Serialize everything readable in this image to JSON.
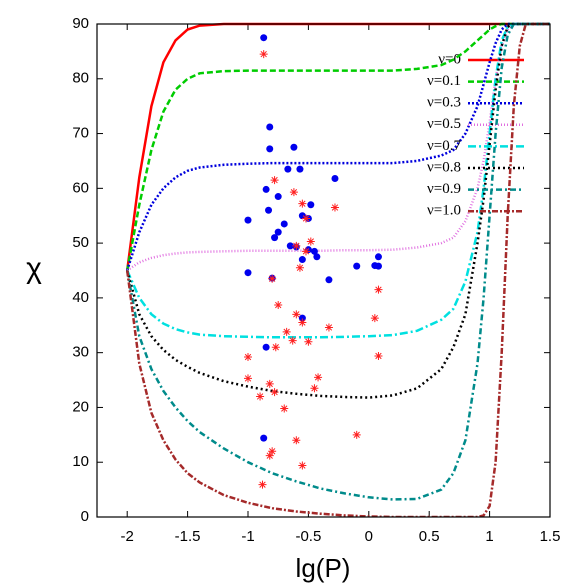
{
  "chart_data": {
    "type": "line",
    "xlabel": "lg(P)",
    "ylabel": "χ",
    "xlim": [
      -2.25,
      1.5
    ],
    "ylim": [
      0,
      90
    ],
    "xticks": [
      -2,
      -1.5,
      -1,
      -0.5,
      0,
      0.5,
      1,
      1.5
    ],
    "yticks": [
      0,
      10,
      20,
      30,
      40,
      50,
      60,
      70,
      80,
      90
    ],
    "legend": "top-right",
    "x": [
      -2,
      -1.9,
      -1.8,
      -1.7,
      -1.6,
      -1.5,
      -1.4,
      -1.2,
      -1,
      -0.8,
      -0.6,
      -0.4,
      -0.2,
      0,
      0.2,
      0.4,
      0.6,
      0.7,
      0.8,
      0.9,
      0.95,
      1,
      1.05,
      1.1,
      1.15,
      1.2,
      1.25,
      1.3,
      1.4,
      1.5
    ],
    "series": [
      {
        "name": "ν=0",
        "color": "#ff0000",
        "dash": "none",
        "values": [
          45,
          62,
          75,
          83,
          87,
          89,
          89.7,
          90,
          90,
          90,
          90,
          90,
          90,
          90,
          90,
          90,
          90,
          90,
          90,
          90,
          90,
          90,
          90,
          90,
          90,
          90,
          90,
          90,
          90,
          90
        ]
      },
      {
        "name": "ν=0.1",
        "color": "#00cc00",
        "dash": "6,3",
        "values": [
          45,
          57,
          67,
          74,
          78,
          80,
          81,
          81.4,
          81.5,
          81.5,
          81.5,
          81.5,
          81.5,
          81.5,
          81.5,
          81.8,
          82.5,
          83.5,
          85,
          87,
          88,
          89,
          89.6,
          90,
          90,
          90,
          90,
          90,
          90,
          90
        ]
      },
      {
        "name": "ν=0.3",
        "color": "#0000dd",
        "dash": "2,2",
        "values": [
          45,
          52,
          57,
          60,
          62,
          63.2,
          63.8,
          64.3,
          64.5,
          64.6,
          64.6,
          64.6,
          64.6,
          64.6,
          64.6,
          65,
          66,
          67,
          70,
          75,
          79,
          83,
          86.5,
          89,
          90,
          90,
          90,
          90,
          90,
          90
        ]
      },
      {
        "name": "ν=0.5",
        "color": "#e070e0",
        "dash": "1,2",
        "values": [
          45,
          46.5,
          47.3,
          47.8,
          48.1,
          48.3,
          48.4,
          48.5,
          48.6,
          48.6,
          48.6,
          48.6,
          48.7,
          48.7,
          48.8,
          49.2,
          50,
          51,
          54,
          60,
          65,
          72,
          80,
          86,
          89,
          90,
          90,
          90,
          90,
          90
        ]
      },
      {
        "name": "ν=0.7",
        "color": "#00e0e0",
        "dash": "8,3,2,3",
        "values": [
          45,
          40,
          37,
          35.3,
          34.3,
          33.7,
          33.3,
          33,
          32.9,
          32.8,
          32.8,
          32.8,
          32.9,
          33,
          33.2,
          34,
          36,
          38,
          43,
          52,
          60,
          70,
          80,
          87,
          89.5,
          90,
          90,
          90,
          90,
          90
        ]
      },
      {
        "name": "ν=0.8",
        "color": "#000000",
        "dash": "2,3",
        "values": [
          45,
          37,
          33,
          30.5,
          28.7,
          27.4,
          26.3,
          24.8,
          23.8,
          23,
          22.5,
          22.1,
          21.9,
          21.8,
          22.2,
          23.5,
          27,
          31,
          37,
          50,
          58,
          68,
          78,
          86,
          89.5,
          90,
          90,
          90,
          90,
          90
        ]
      },
      {
        "name": "ν=0.9",
        "color": "#008b8b",
        "dash": "6,3,2,3",
        "values": [
          45,
          33,
          27,
          23,
          20,
          17.5,
          15.5,
          12.5,
          10,
          8,
          6.5,
          5.2,
          4.3,
          3.6,
          3.2,
          3.3,
          5,
          8,
          14,
          28,
          40,
          55,
          70,
          82,
          88,
          90,
          90,
          90,
          90,
          90
        ]
      },
      {
        "name": "ν=1.0",
        "color": "#a52a2a",
        "dash": "6,2,2,2",
        "values": [
          45,
          28,
          19,
          14,
          10.5,
          8,
          6.3,
          4,
          2.6,
          1.6,
          1,
          0.6,
          0.3,
          0.1,
          0,
          0,
          0,
          0,
          0,
          0,
          0.3,
          2,
          10,
          30,
          55,
          75,
          86,
          90,
          90,
          90
        ]
      }
    ],
    "points": [
      {
        "color": "#0000ee",
        "marker": "dot",
        "x": [
          -0.87,
          -0.82,
          -0.82,
          -0.62,
          -0.67,
          -0.57,
          -0.28,
          -0.85,
          -0.75,
          -0.48,
          -0.55,
          -0.5,
          -1.0,
          -0.83,
          -0.7,
          -0.75,
          -0.78,
          -0.65,
          -0.6,
          -0.45,
          -0.5,
          -0.43,
          -0.33,
          -0.1,
          0.05,
          0.08,
          0.08,
          -1.0,
          -0.8,
          -0.55,
          -0.85,
          -0.87,
          -0.55
        ],
        "y": [
          87.5,
          71.2,
          67.2,
          67.5,
          63.5,
          63.5,
          61.8,
          59.8,
          58.5,
          57,
          55,
          54.5,
          54.2,
          56,
          53.5,
          52,
          51,
          49.5,
          49.3,
          48.5,
          48.8,
          47.5,
          43.3,
          45.8,
          45.9,
          47.5,
          45.8,
          44.6,
          43.6,
          36.3,
          31,
          14.4,
          47
        ]
      },
      {
        "color": "#ff2020",
        "marker": "star",
        "x": [
          -0.87,
          -0.78,
          -0.62,
          -0.55,
          -0.52,
          -0.48,
          -0.6,
          -0.52,
          -0.57,
          -0.28,
          0.08,
          -0.8,
          -0.75,
          -0.6,
          -0.55,
          -0.33,
          0.05,
          -0.68,
          -0.63,
          -0.5,
          -0.42,
          -0.45,
          -0.77,
          -1.0,
          0.08,
          -1.0,
          -0.82,
          -0.9,
          -0.78,
          -0.7,
          -0.6,
          -0.1,
          -0.8,
          -0.82,
          -0.55,
          -0.88
        ],
        "y": [
          84.5,
          61.5,
          59.3,
          57.2,
          54.5,
          50.3,
          49.5,
          48.5,
          45.5,
          56.5,
          41.5,
          43.5,
          38.7,
          37,
          35.5,
          34.6,
          36.3,
          33.8,
          32.2,
          32,
          25.5,
          23.5,
          31,
          29.2,
          29.4,
          25.3,
          24.3,
          22,
          22.8,
          19.8,
          14,
          15,
          12,
          11.2,
          9.4,
          5.9
        ]
      }
    ]
  }
}
